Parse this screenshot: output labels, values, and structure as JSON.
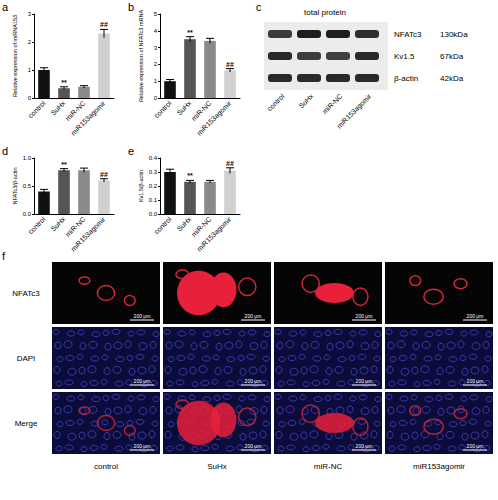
{
  "chart_data": [
    {
      "type": "bar",
      "panel": "a",
      "ylabel": "Relative expression of miRNA153",
      "categories": [
        "control",
        "SuHx",
        "miR-NC",
        "miR153agomir"
      ],
      "values": [
        1.0,
        0.35,
        0.4,
        2.3
      ],
      "errors": [
        0.08,
        0.05,
        0.04,
        0.15
      ],
      "colors": [
        "#111111",
        "#555555",
        "#8a8a8a",
        "#d0d0d0"
      ],
      "annotations": [
        null,
        "**",
        null,
        "##"
      ],
      "ylim": [
        0,
        3
      ],
      "yticks": [
        0,
        1,
        2,
        3
      ]
    },
    {
      "type": "bar",
      "panel": "b",
      "ylabel": "Relative expression of NFATc3 mRNA",
      "categories": [
        "control",
        "SuHx",
        "miR-NC",
        "miR153agomir"
      ],
      "values": [
        1.0,
        3.5,
        3.4,
        1.65
      ],
      "errors": [
        0.1,
        0.15,
        0.15,
        0.1
      ],
      "colors": [
        "#111111",
        "#555555",
        "#8a8a8a",
        "#d0d0d0"
      ],
      "annotations": [
        null,
        "**",
        null,
        "##"
      ],
      "ylim": [
        0,
        5
      ],
      "yticks": [
        0,
        1,
        2,
        3,
        4,
        5
      ]
    },
    {
      "type": "bar",
      "panel": "d",
      "ylabel": "NFATc3/β-actin",
      "categories": [
        "control",
        "SuHx",
        "miR-NC",
        "miR153agomir"
      ],
      "values": [
        0.4,
        0.78,
        0.78,
        0.6
      ],
      "errors": [
        0.04,
        0.03,
        0.04,
        0.03
      ],
      "colors": [
        "#111111",
        "#555555",
        "#8a8a8a",
        "#d0d0d0"
      ],
      "annotations": [
        null,
        "**",
        null,
        "##"
      ],
      "ylim": [
        0,
        1
      ],
      "yticks": [
        {
          "value": 0,
          "label": "0.0"
        },
        0.5,
        {
          "value": 1,
          "label": "1.0"
        }
      ]
    },
    {
      "type": "bar",
      "panel": "e",
      "ylabel": "Kv1.5/β-actin",
      "categories": [
        "control",
        "SuHx",
        "miR-NC",
        "miR153agomir"
      ],
      "values": [
        0.3,
        0.23,
        0.23,
        0.31
      ],
      "errors": [
        0.02,
        0.01,
        0.01,
        0.02
      ],
      "colors": [
        "#111111",
        "#555555",
        "#8a8a8a",
        "#d0d0d0"
      ],
      "annotations": [
        null,
        "**",
        null,
        "##"
      ],
      "ylim": [
        0,
        0.4
      ],
      "yticks": [
        {
          "value": 0,
          "label": "0.0"
        },
        0.1,
        0.2,
        0.3,
        0.4
      ]
    }
  ],
  "western_blot": {
    "panel": "c",
    "title": "total protein",
    "lanes": [
      "control",
      "SuHx",
      "miR-NC",
      "miR153agomir"
    ],
    "rows": [
      {
        "label": "NFATc3",
        "size": "130kDa"
      },
      {
        "label": "Kv1.5",
        "size": "67kDa"
      },
      {
        "label": "β-actin",
        "size": "42kDa"
      }
    ]
  },
  "immunofluorescence": {
    "panel": "f",
    "rows": [
      "NFATc3",
      "DAPI",
      "Merge"
    ],
    "columns": [
      "control",
      "SuHx",
      "miR-NC",
      "miR153agomir"
    ],
    "scale_bar": "200 μm"
  }
}
